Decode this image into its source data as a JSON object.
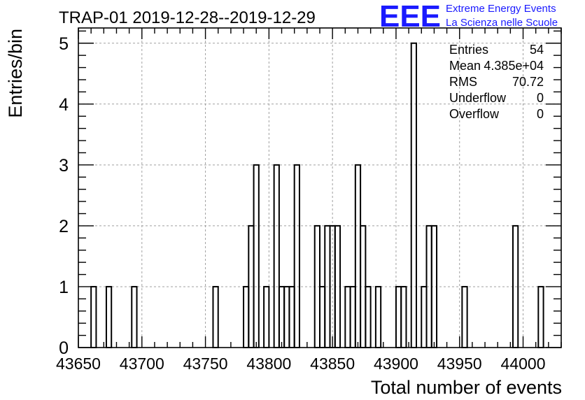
{
  "chart_data": {
    "type": "histogram",
    "title": "TRAP-01 2019-12-28--2019-12-29",
    "xlabel": "Total number of events",
    "ylabel": "Entries/bin",
    "xlim": [
      43650,
      44030
    ],
    "ylim": [
      0,
      5.25
    ],
    "x_ticks": [
      43650,
      43700,
      43750,
      43800,
      43850,
      43900,
      43950,
      44000
    ],
    "y_ticks": [
      0,
      1,
      2,
      3,
      4,
      5
    ],
    "grid": true,
    "bin_width": 4,
    "bins": [
      {
        "x": 43660,
        "count": 1
      },
      {
        "x": 43672,
        "count": 1
      },
      {
        "x": 43692,
        "count": 1
      },
      {
        "x": 43756,
        "count": 1
      },
      {
        "x": 43780,
        "count": 1
      },
      {
        "x": 43784,
        "count": 2
      },
      {
        "x": 43788,
        "count": 3
      },
      {
        "x": 43796,
        "count": 1
      },
      {
        "x": 43804,
        "count": 3
      },
      {
        "x": 43808,
        "count": 1
      },
      {
        "x": 43812,
        "count": 1
      },
      {
        "x": 43816,
        "count": 1
      },
      {
        "x": 43820,
        "count": 3
      },
      {
        "x": 43836,
        "count": 2
      },
      {
        "x": 43840,
        "count": 1
      },
      {
        "x": 43844,
        "count": 2
      },
      {
        "x": 43848,
        "count": 2
      },
      {
        "x": 43852,
        "count": 2
      },
      {
        "x": 43860,
        "count": 1
      },
      {
        "x": 43864,
        "count": 1
      },
      {
        "x": 43868,
        "count": 3
      },
      {
        "x": 43872,
        "count": 2
      },
      {
        "x": 43876,
        "count": 1
      },
      {
        "x": 43884,
        "count": 1
      },
      {
        "x": 43900,
        "count": 1
      },
      {
        "x": 43904,
        "count": 1
      },
      {
        "x": 43912,
        "count": 5
      },
      {
        "x": 43920,
        "count": 1
      },
      {
        "x": 43924,
        "count": 2
      },
      {
        "x": 43928,
        "count": 2
      },
      {
        "x": 43952,
        "count": 1
      },
      {
        "x": 43992,
        "count": 2
      },
      {
        "x": 44012,
        "count": 1
      }
    ]
  },
  "stats_box": [
    {
      "label": "Entries",
      "value": "54"
    },
    {
      "label": "Mean",
      "value": "4.385e+04"
    },
    {
      "label": "RMS",
      "value": "70.72"
    },
    {
      "label": "Underflow",
      "value": "0"
    },
    {
      "label": "Overflow",
      "value": "0"
    }
  ],
  "logo": {
    "mark": "EEE",
    "line1": "Extreme Energy Events",
    "line2": "La Scienza nelle Scuole",
    "color": "#1a1aff"
  },
  "colors": {
    "line": "#000000",
    "grid": "#a0a0a0"
  }
}
